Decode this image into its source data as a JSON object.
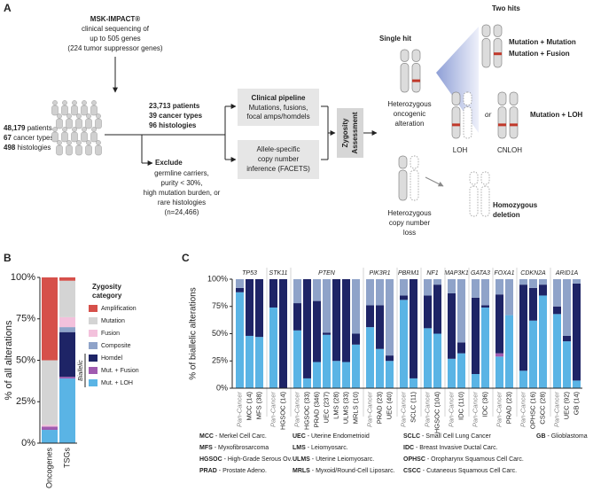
{
  "panel_a": {
    "label": "A",
    "source": [
      "MSK-IMPACT®",
      "clinical sequencing of",
      "up to 505 genes",
      "(224 tumor suppressor genes)"
    ],
    "cohort": [
      {
        "number": "48,179",
        "text": "patients"
      },
      {
        "number": "67",
        "text": "cancer types"
      },
      {
        "number": "498",
        "text": "histologies"
      }
    ],
    "filtered": [
      {
        "number": "23,713",
        "text": "patients"
      },
      {
        "number": "39",
        "text": "cancer types"
      },
      {
        "number": "96",
        "text": "histologies"
      }
    ],
    "exclude_title": "Exclude",
    "exclude": [
      "germline carriers,",
      "purity < 30%,",
      "high mutation burden, or",
      "rare histologies",
      "(n=24,466)"
    ],
    "pipeline_title": "Clinical pipeline",
    "pipeline": [
      "Mutations, fusions,",
      "focal amps/homdels"
    ],
    "facets": [
      "Allele-specific",
      "copy number",
      "inference (FACETS)"
    ],
    "zygosity": [
      "Zygosity",
      "Assessment"
    ],
    "two_hits": "Two hits",
    "single_hit": "Single hit",
    "het_onco": [
      "Heterozygous",
      "oncogenic",
      "alteration"
    ],
    "mut_mut": "Mutation + Mutation",
    "mut_fus": "Mutation + Fusion",
    "or": "or",
    "mut_loh": "Mutation + LOH",
    "loh": "LOH",
    "cnloh": "CNLOH",
    "het_cn": [
      "Heterozygous",
      "copy number",
      "loss"
    ],
    "homdel": [
      "Homozygous",
      "deletion"
    ]
  },
  "chart_data": [
    {
      "type": "stacked_bar",
      "panel": "B",
      "ylabel": "% of all alterations",
      "categories": [
        "Oncogenes",
        "TSGs"
      ],
      "legend_title": [
        "Zygosity",
        "category"
      ],
      "bracket_label": "Biallelic",
      "series": [
        {
          "name": "Amplification",
          "color": "#d6504a",
          "values": [
            50,
            2
          ]
        },
        {
          "name": "Mutation",
          "color": "#d4d4d4",
          "values": [
            39,
            22
          ]
        },
        {
          "name": "Fusion",
          "color": "#f3c1dc",
          "values": [
            1,
            6
          ]
        },
        {
          "name": "Composite",
          "color": "#8fa3c9",
          "values": [
            0,
            3
          ]
        },
        {
          "name": "Homdel",
          "color": "#1e2466",
          "values": [
            0,
            27
          ]
        },
        {
          "name": "Mut. + Fusion",
          "color": "#a05bb0",
          "values": [
            2,
            1
          ]
        },
        {
          "name": "Mut. + LOH",
          "color": "#5ab4e5",
          "values": [
            8,
            39
          ]
        }
      ],
      "ylim": [
        0,
        100
      ],
      "yticks": [
        {
          "value": 0,
          "label": "0%"
        },
        {
          "value": 25,
          "label": "25%"
        },
        {
          "value": 50,
          "label": "50%"
        },
        {
          "value": 75,
          "label": "75%"
        },
        {
          "value": 100,
          "label": "100%"
        }
      ]
    },
    {
      "type": "grouped_stacked_bar",
      "panel": "C",
      "ylabel": "% of biallelic alterations",
      "colors": [
        "#5ab4e5",
        "#a05bb0",
        "#1e2466",
        "#8fa3c9"
      ],
      "groups": [
        {
          "name": "TP53",
          "categories": [
            "Pan-Cancer",
            "MCC (14)",
            "MFS (38)"
          ],
          "values": [
            [
              88,
              48,
              47
            ],
            [
              0,
              0,
              0
            ],
            [
              4,
              52,
              53
            ],
            [
              8,
              0,
              0
            ]
          ]
        },
        {
          "name": "STK11",
          "categories": [
            "Pan-Cancer",
            "HGSOC (14)"
          ],
          "values": [
            [
              74,
              0
            ],
            [
              0,
              0
            ],
            [
              26,
              100
            ],
            [
              0,
              0
            ]
          ]
        },
        {
          "name": "PTEN",
          "categories": [
            "Pan-Cancer",
            "HGSOC (33)",
            "PRAD (346)",
            "UEC (237)",
            "LMS (28)",
            "ULMS (33)",
            "MRLS (10)"
          ],
          "values": [
            [
              53,
              9,
              24,
              49,
              25,
              24,
              40
            ],
            [
              0,
              0,
              0,
              0,
              0,
              0,
              0
            ],
            [
              25,
              91,
              56,
              2,
              75,
              76,
              10
            ],
            [
              22,
              0,
              20,
              49,
              0,
              0,
              50
            ]
          ]
        },
        {
          "name": "PIK3R1",
          "categories": [
            "Pan-Cancer",
            "PRAD (23)",
            "UEC (40)"
          ],
          "values": [
            [
              56,
              36,
              25
            ],
            [
              0,
              0,
              0
            ],
            [
              20,
              40,
              5
            ],
            [
              24,
              24,
              70
            ]
          ]
        },
        {
          "name": "PBRM1",
          "categories": [
            "Pan-Cancer",
            "SCLC (11)"
          ],
          "values": [
            [
              81,
              9
            ],
            [
              0,
              0
            ],
            [
              4,
              91
            ],
            [
              15,
              0
            ]
          ]
        },
        {
          "name": "NF1",
          "categories": [
            "Pan-Cancer",
            "HGSOC (104)"
          ],
          "values": [
            [
              55,
              50
            ],
            [
              0,
              0
            ],
            [
              30,
              45
            ],
            [
              15,
              5
            ]
          ]
        },
        {
          "name": "MAP3K1",
          "categories": [
            "Pan-Cancer",
            "IDC (110)"
          ],
          "values": [
            [
              27,
              32
            ],
            [
              0,
              0
            ],
            [
              60,
              10
            ],
            [
              13,
              58
            ]
          ]
        },
        {
          "name": "GATA3",
          "categories": [
            "Pan-Cancer",
            "IDC (36)"
          ],
          "values": [
            [
              13,
              74
            ],
            [
              0,
              0
            ],
            [
              70,
              2
            ],
            [
              17,
              24
            ]
          ]
        },
        {
          "name": "FOXA1",
          "categories": [
            "Pan-Cancer",
            "PRAD (23)"
          ],
          "values": [
            [
              29,
              67
            ],
            [
              3,
              0
            ],
            [
              54,
              0
            ],
            [
              14,
              33
            ]
          ]
        },
        {
          "name": "CDKN2A",
          "categories": [
            "Pan-Cancer",
            "OPHSC (16)",
            "CSCC (28)"
          ],
          "values": [
            [
              16,
              62,
              85
            ],
            [
              0,
              0,
              0
            ],
            [
              79,
              30,
              10
            ],
            [
              5,
              8,
              5
            ]
          ]
        },
        {
          "name": "ARID1A",
          "categories": [
            "Pan-Cancer",
            "UEC (92)",
            "GB (14)"
          ],
          "values": [
            [
              68,
              43,
              7
            ],
            [
              0,
              0,
              0
            ],
            [
              7,
              5,
              89
            ],
            [
              25,
              52,
              4
            ]
          ]
        }
      ],
      "ylim": [
        0,
        100
      ],
      "yticks": [
        {
          "value": 0,
          "label": "0%"
        },
        {
          "value": 25,
          "label": "25%"
        },
        {
          "value": 50,
          "label": "50%"
        },
        {
          "value": 75,
          "label": "75%"
        },
        {
          "value": 100,
          "label": "100%"
        }
      ]
    }
  ],
  "abbreviations": [
    [
      {
        "abbr": "MCC",
        "text": "- Merkel Cell Carc."
      },
      {
        "abbr": "MFS",
        "text": "- Myxofibrosarcoma"
      },
      {
        "abbr": "HGSOC",
        "text": "- High-Grade Serous Ov."
      },
      {
        "abbr": "PRAD",
        "text": "- Prostate Adeno."
      }
    ],
    [
      {
        "abbr": "UEC",
        "text": "- Uterine Endometrioid"
      },
      {
        "abbr": "LMS",
        "text": "- Leiomyosarc."
      },
      {
        "abbr": "ULMS",
        "text": "- Uterine Leiomyosarc."
      },
      {
        "abbr": "MRLS",
        "text": "- Myxoid/Round-Cell Liposarc."
      }
    ],
    [
      {
        "abbr": "SCLC",
        "text": "- Small Cell Lung Cancer"
      },
      {
        "abbr": "IDC",
        "text": "- Breast Invasive Ductal Carc."
      },
      {
        "abbr": "OPHSC",
        "text": "- Oropharynx Squamous Cell Carc."
      },
      {
        "abbr": "CSCC",
        "text": "- Cutaneous Squamous Cell Carc."
      }
    ],
    [
      {
        "abbr": "GB",
        "text": "- Glioblastoma"
      }
    ]
  ]
}
